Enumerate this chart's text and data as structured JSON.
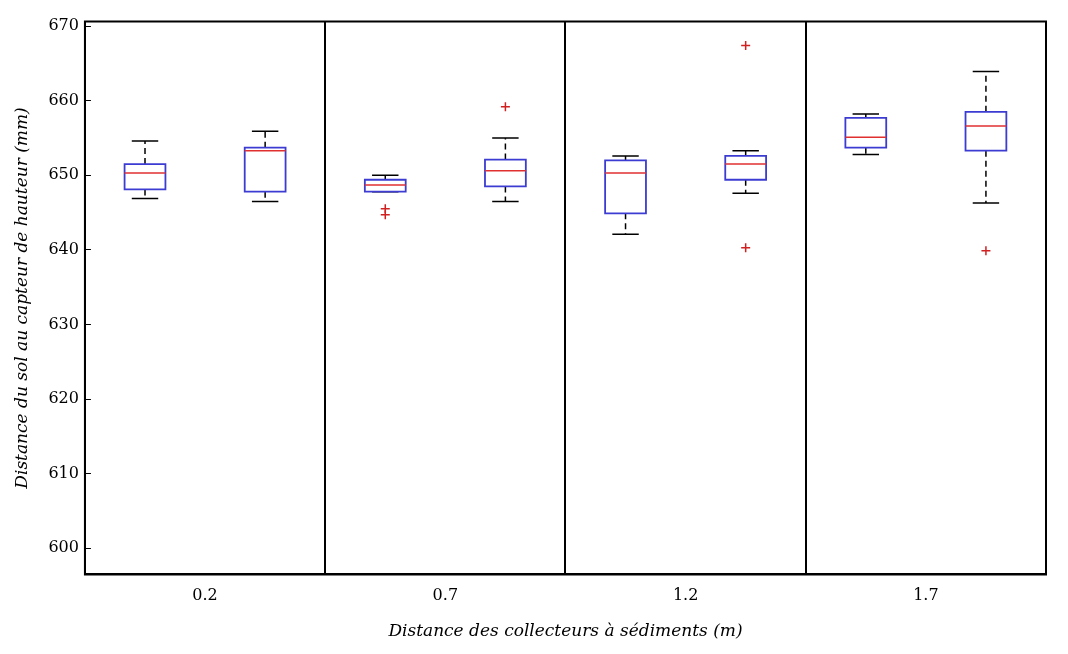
{
  "chart_data": {
    "type": "box",
    "xlabel": "Distance des collecteurs à sédiments (m)",
    "ylabel": "Distance du sol au capteur de hauteur (mm)",
    "categories": [
      "0.2",
      "0.7",
      "1.2",
      "1.7"
    ],
    "ylim": [
      596.5,
      670.6
    ],
    "yticks": [
      600,
      610,
      620,
      630,
      640,
      650,
      660,
      670
    ],
    "grid": "x",
    "legend": false,
    "marker": "cross",
    "line_style": "dashed",
    "series": [
      {
        "color": "#3c3cd2",
        "boxes": [
          {
            "low": 646.9,
            "q1": 648.1,
            "median": 650.3,
            "q3": 651.5,
            "high": 654.6
          },
          {
            "low": 647.8,
            "q1": 647.8,
            "median": 648.7,
            "q3": 649.4,
            "high": 650.0,
            "outliers": [
              645.5,
              644.7
            ]
          },
          {
            "low": 642.1,
            "q1": 644.9,
            "median": 650.3,
            "q3": 652.0,
            "high": 652.6
          },
          {
            "low": 652.8,
            "q1": 653.7,
            "median": 655.1,
            "q3": 657.7,
            "high": 658.2
          }
        ]
      },
      {
        "color": "#3c3cd2",
        "boxes": [
          {
            "low": 646.5,
            "q1": 647.8,
            "median": 653.3,
            "q3": 653.7,
            "high": 655.9
          },
          {
            "low": 646.5,
            "q1": 648.5,
            "median": 650.6,
            "q3": 652.1,
            "high": 655.0,
            "outliers": [
              659.2
            ]
          },
          {
            "low": 647.6,
            "q1": 649.4,
            "median": 651.5,
            "q3": 652.6,
            "high": 653.3,
            "outliers": [
              667.4,
              640.3
            ]
          },
          {
            "low": 646.3,
            "q1": 653.3,
            "median": 656.6,
            "q3": 658.5,
            "high": 663.9,
            "outliers": [
              639.9
            ]
          }
        ]
      }
    ]
  }
}
